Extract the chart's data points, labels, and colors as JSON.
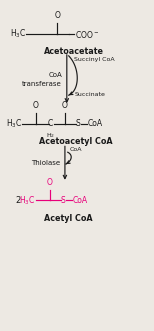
{
  "fig_width": 1.54,
  "fig_height": 3.31,
  "dpi": 100,
  "bg_color": "#ede9e3",
  "black": "#1a1a1a",
  "pink": "#e8007a",
  "acetoacetate_label": "Acetoacetate",
  "acetoacetyl_label": "Acetoacetyl CoA",
  "acetyl_label": "Acetyl CoA",
  "enzyme1_line1": "CoA",
  "enzyme1_line2": "transferase",
  "enzyme2": "Thiolase",
  "succinyl": "Succinyl CoA",
  "succinate": "Succinate",
  "coa_in": "CoA",
  "multiplier": "2"
}
